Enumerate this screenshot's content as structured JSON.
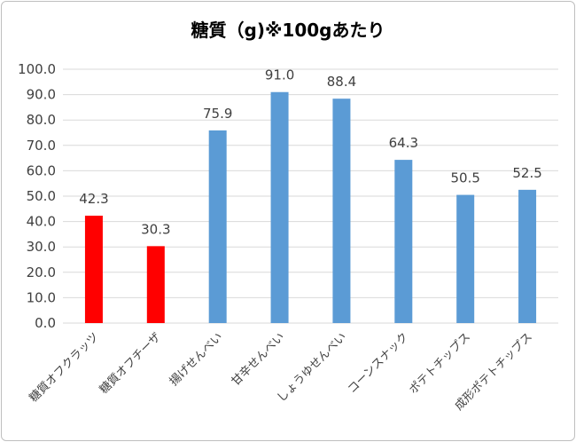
{
  "chart_data": {
    "type": "bar",
    "title": "糖質（g)※100gあたり",
    "categories": [
      "糖質オフクラッツ",
      "糖質オフチーザ",
      "揚げせんべい",
      "甘辛せんべい",
      "しょうゆせんべい",
      "コーンスナック",
      "ポテトチップス",
      "成形ポテトチップス"
    ],
    "values": [
      42.3,
      30.3,
      75.9,
      91.0,
      88.4,
      64.3,
      50.5,
      52.5
    ],
    "data_labels": [
      "42.3",
      "30.3",
      "75.9",
      "91.0",
      "88.4",
      "64.3",
      "50.5",
      "52.5"
    ],
    "bar_colors": [
      "#ff0000",
      "#ff0000",
      "#5b9bd5",
      "#5b9bd5",
      "#5b9bd5",
      "#5b9bd5",
      "#5b9bd5",
      "#5b9bd5"
    ],
    "ylim": [
      0,
      100
    ],
    "yticks": [
      "0.0",
      "10.0",
      "20.0",
      "30.0",
      "40.0",
      "50.0",
      "60.0",
      "70.0",
      "80.0",
      "90.0",
      "100.0"
    ],
    "grid": true,
    "grid_color": "#d9d9d9",
    "legend": "none"
  }
}
